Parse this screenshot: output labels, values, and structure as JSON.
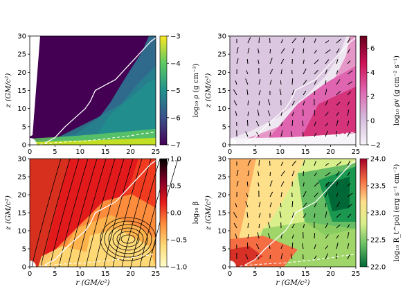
{
  "chart_data": [
    {
      "type": "heatmap",
      "panel": "top-left",
      "xlabel": "",
      "ylabel": "z  (GM/c²)",
      "xlim": [
        0,
        25
      ],
      "ylim": [
        0,
        30
      ],
      "xticks": [
        "0",
        "5",
        "10",
        "15",
        "20",
        "25"
      ],
      "yticks": [
        "0",
        "5",
        "10",
        "15",
        "20",
        "25",
        "30"
      ],
      "colorbar": {
        "label": "log₁₀ ρ  (g cm⁻³)",
        "range": [
          -7,
          -3
        ],
        "ticks": [
          "−3",
          "−4",
          "−5",
          "−6",
          "−7"
        ],
        "colors": [
          "#440154",
          "#3b528b",
          "#21918c",
          "#5ec962",
          "#fde725"
        ]
      },
      "contours": [
        {
          "style": "solid",
          "x": [
            3,
            5,
            7,
            9,
            11,
            12,
            13,
            15,
            17,
            19,
            21,
            23,
            24,
            25
          ],
          "y": [
            0.5,
            2,
            5,
            7.5,
            10,
            12,
            15,
            16.5,
            18,
            21,
            24,
            27,
            28.5,
            29.5
          ]
        },
        {
          "style": "dashed",
          "x": [
            2,
            5,
            8,
            11,
            14,
            17,
            20,
            22,
            25
          ],
          "y": [
            0.2,
            0.6,
            0.9,
            1.1,
            1.5,
            2.0,
            2.5,
            3.0,
            3.5
          ]
        }
      ]
    },
    {
      "type": "heatmap",
      "panel": "top-right",
      "xlabel": "",
      "ylabel": "z  (GM/c²)",
      "xlim": [
        0,
        25
      ],
      "ylim": [
        0,
        30
      ],
      "xticks": [
        "0",
        "5",
        "10",
        "15",
        "20",
        "25"
      ],
      "yticks": [
        "0",
        "5",
        "10",
        "15",
        "20",
        "25",
        "30"
      ],
      "colorbar": {
        "label": "log₁₀ ρv  (g cm⁻² s⁻¹)",
        "range": [
          -2,
          7
        ],
        "ticks": [
          "6",
          "4",
          "2",
          "0",
          "−2"
        ],
        "colors": [
          "#f7f4f9",
          "#d4b9da",
          "#df65b0",
          "#ce1256",
          "#67001f"
        ]
      },
      "contours": [
        {
          "style": "solid",
          "x": [
            3,
            5,
            7,
            9,
            11,
            12,
            13,
            15,
            17,
            19,
            21,
            23,
            24,
            25
          ],
          "y": [
            0.5,
            2,
            5,
            7.5,
            10,
            12,
            15,
            16.5,
            18,
            21,
            24,
            27,
            28.5,
            29.5
          ]
        },
        {
          "style": "dashed",
          "x": [
            2,
            5,
            8,
            11,
            14,
            17,
            20,
            22,
            25
          ],
          "y": [
            0.2,
            0.6,
            0.9,
            1.1,
            1.5,
            2.0,
            2.5,
            3.0,
            3.5
          ]
        }
      ]
    },
    {
      "type": "heatmap",
      "panel": "bottom-left",
      "xlabel": "r  (GM/c²)",
      "ylabel": "z  (GM/c²)",
      "xlim": [
        0,
        25
      ],
      "ylim": [
        0,
        30
      ],
      "xticks": [
        "0",
        "5",
        "10",
        "15",
        "20",
        "25"
      ],
      "yticks": [
        "0",
        "5",
        "10",
        "15",
        "20",
        "25",
        "30"
      ],
      "colorbar": {
        "label": "log₁₀ β",
        "range": [
          -1,
          1
        ],
        "ticks": [
          "1.0",
          "0.5",
          "0.0",
          "−0.5",
          "−1.0"
        ],
        "colors": [
          "#ffffcc",
          "#fed976",
          "#fd8d3c",
          "#e31a1c",
          "#800026",
          "#000000"
        ]
      },
      "contours": [
        {
          "style": "solid",
          "x": [
            3,
            5,
            7,
            9,
            11,
            12,
            13,
            15,
            17,
            19,
            21,
            23,
            24,
            25
          ],
          "y": [
            0.5,
            2,
            5,
            7.5,
            10,
            12,
            15,
            16.5,
            18,
            21,
            24,
            27,
            28.5,
            29.5
          ]
        },
        {
          "style": "dashed",
          "x": [
            2,
            5,
            8,
            11,
            14,
            17,
            20,
            22,
            25
          ],
          "y": [
            0.2,
            0.6,
            0.9,
            1.1,
            1.5,
            2.0,
            2.5,
            3.0,
            3.5
          ]
        }
      ]
    },
    {
      "type": "heatmap",
      "panel": "bottom-right",
      "xlabel": "r  (GM/c²)",
      "ylabel": "z  (GM/c²)",
      "xlim": [
        0,
        25
      ],
      "ylim": [
        0,
        30
      ],
      "xticks": [
        "0",
        "5",
        "10",
        "15",
        "20",
        "25"
      ],
      "yticks": [
        "0",
        "5",
        "10",
        "15",
        "20",
        "25",
        "30"
      ],
      "colorbar": {
        "label": "log₁₀ R_t^pol  (erg s⁻¹ cm⁻²)",
        "range": [
          22,
          24
        ],
        "ticks": [
          "24.0",
          "23.5",
          "23.0",
          "22.5",
          "22.0"
        ],
        "colors": [
          "#006837",
          "#66bd63",
          "#d9ef8b",
          "#fee08b",
          "#f46d43",
          "#a50026"
        ]
      },
      "contours": [
        {
          "style": "solid",
          "x": [
            3,
            5,
            7,
            9,
            11,
            12,
            13,
            15,
            17,
            19,
            21,
            23,
            24,
            25
          ],
          "y": [
            0.5,
            2,
            5,
            7.5,
            10,
            12,
            15,
            16.5,
            18,
            21,
            24,
            27,
            28.5,
            29.5
          ]
        },
        {
          "style": "dashed",
          "x": [
            2,
            5,
            8,
            11,
            14,
            17,
            20,
            22,
            25
          ],
          "y": [
            0.2,
            0.6,
            0.9,
            1.1,
            1.5,
            2.0,
            2.5,
            3.0,
            3.5
          ]
        }
      ]
    }
  ]
}
